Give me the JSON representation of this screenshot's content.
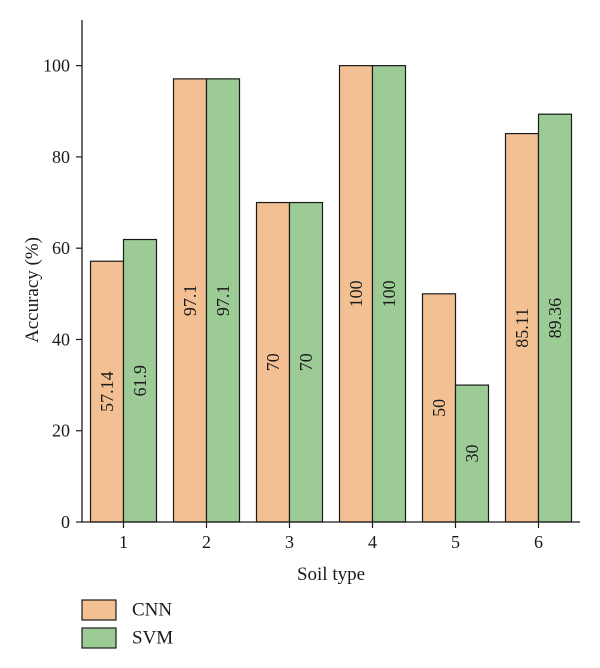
{
  "chart_data": {
    "type": "bar",
    "categories": [
      "1",
      "2",
      "3",
      "4",
      "5",
      "6"
    ],
    "series": [
      {
        "name": "CNN",
        "values": [
          57.14,
          97.1,
          70,
          100,
          50,
          85.11
        ],
        "data_labels": [
          "57.14",
          "97.1",
          "70",
          "100",
          "50",
          "85.11"
        ],
        "color": "#f2c092"
      },
      {
        "name": "SVM",
        "values": [
          61.9,
          97.1,
          70,
          100,
          30,
          89.36
        ],
        "data_labels": [
          "61.9",
          "97.1",
          "70",
          "100",
          "30",
          "89.36"
        ],
        "color": "#9ccb96"
      }
    ],
    "xlabel": "Soil type",
    "ylabel": "Accuracy (%)",
    "ylim": [
      0,
      110
    ],
    "yticks": [
      "0",
      "20",
      "40",
      "60",
      "80",
      "100"
    ],
    "ytick_values": [
      0,
      20,
      40,
      60,
      80,
      100
    ],
    "grid": false,
    "legend_position": "bottom-left",
    "bar_outline_color": "#1a1a1a"
  }
}
